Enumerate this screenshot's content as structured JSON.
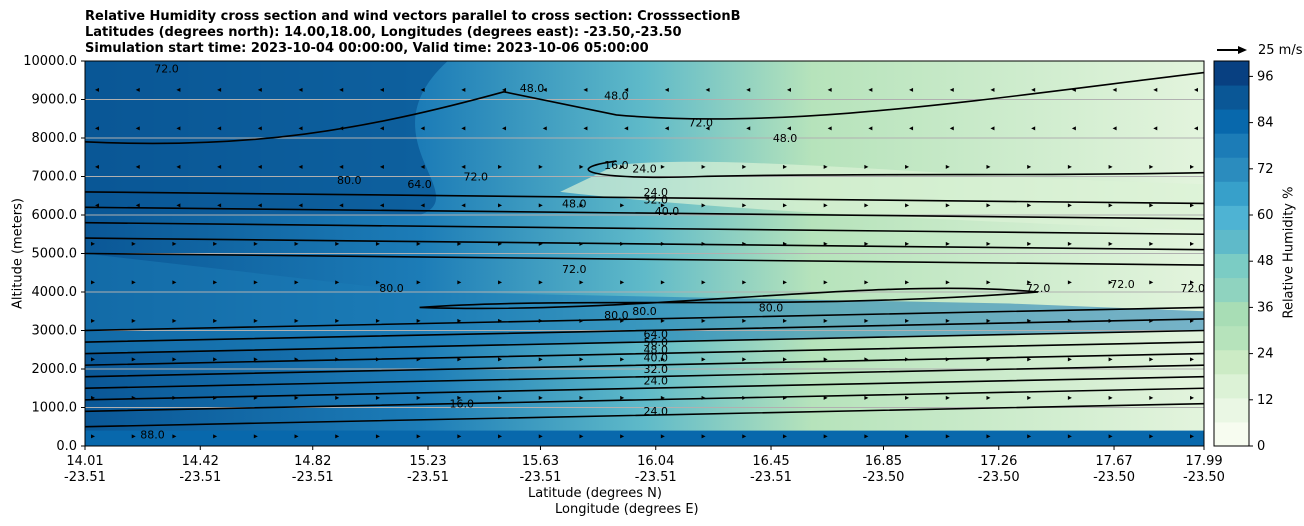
{
  "title_lines": [
    "Relative Humidity cross section and wind vectors parallel to cross section: CrosssectionB",
    "Latitudes (degrees north): 14.00,18.00, Longitudes (degrees east): -23.50,-23.50",
    "Simulation start time: 2023-10-04 00:00:00, Valid time: 2023-10-06 05:00:00"
  ],
  "chart_data": {
    "type": "heatmap",
    "title": "Relative Humidity cross section and wind vectors parallel to cross section: CrosssectionB",
    "xlabel": "Latitude (degrees N)",
    "xlabel2": "Longitude (degrees E)",
    "ylabel": "Altitude (meters)",
    "ylim": [
      0,
      10000
    ],
    "x_ticks": [
      {
        "lat": "14.01",
        "lon": "-23.51"
      },
      {
        "lat": "14.42",
        "lon": "-23.51"
      },
      {
        "lat": "14.82",
        "lon": "-23.51"
      },
      {
        "lat": "15.23",
        "lon": "-23.51"
      },
      {
        "lat": "15.63",
        "lon": "-23.51"
      },
      {
        "lat": "16.04",
        "lon": "-23.51"
      },
      {
        "lat": "16.45",
        "lon": "-23.51"
      },
      {
        "lat": "16.85",
        "lon": "-23.50"
      },
      {
        "lat": "17.26",
        "lon": "-23.50"
      },
      {
        "lat": "17.67",
        "lon": "-23.50"
      },
      {
        "lat": "17.99",
        "lon": "-23.50"
      }
    ],
    "y_ticks": [
      "0.0",
      "1000.0",
      "2000.0",
      "3000.0",
      "4000.0",
      "5000.0",
      "6000.0",
      "7000.0",
      "8000.0",
      "9000.0",
      "10000.0"
    ],
    "grid": "horizontal",
    "colorbar": {
      "label": "Relative Humidity %",
      "ticks": [
        "0",
        "12",
        "24",
        "36",
        "48",
        "60",
        "72",
        "84",
        "96"
      ],
      "range": [
        0,
        100
      ],
      "levels": 25,
      "colors": [
        "#f7fcf0",
        "#eaf7e4",
        "#dcf2d6",
        "#ccebc5",
        "#b6e3bb",
        "#a8ddb5",
        "#8fd3bf",
        "#7bccc4",
        "#5fbac9",
        "#4eb3d3",
        "#37a0ca",
        "#2b8cbe",
        "#1c7cb7",
        "#0868ac",
        "#0a5796",
        "#084081"
      ]
    },
    "wind_key": "25 m/s",
    "contour_labels": [
      {
        "text": "88.0",
        "x": 14.25,
        "y": 200
      },
      {
        "text": "80.0",
        "x": 14.95,
        "y": 6800
      },
      {
        "text": "80.0",
        "x": 15.1,
        "y": 4000
      },
      {
        "text": "72.0",
        "x": 14.3,
        "y": 9700
      },
      {
        "text": "72.0",
        "x": 15.4,
        "y": 6900
      },
      {
        "text": "64.0",
        "x": 15.2,
        "y": 6700
      },
      {
        "text": "48.0",
        "x": 15.6,
        "y": 9200
      },
      {
        "text": "48.0",
        "x": 15.75,
        "y": 6200
      },
      {
        "text": "48.0",
        "x": 15.9,
        "y": 9000
      },
      {
        "text": "24.0",
        "x": 16.0,
        "y": 7100
      },
      {
        "text": "16.0",
        "x": 15.9,
        "y": 7200
      },
      {
        "text": "24.0",
        "x": 16.04,
        "y": 6500
      },
      {
        "text": "32.0",
        "x": 16.04,
        "y": 6300
      },
      {
        "text": "40.0",
        "x": 16.08,
        "y": 6000
      },
      {
        "text": "72.0",
        "x": 15.75,
        "y": 4500
      },
      {
        "text": "80.0",
        "x": 16.0,
        "y": 3400
      },
      {
        "text": "80.0",
        "x": 15.9,
        "y": 3300
      },
      {
        "text": "64.0",
        "x": 16.04,
        "y": 2800
      },
      {
        "text": "56.0",
        "x": 16.04,
        "y": 2600
      },
      {
        "text": "48.0",
        "x": 16.04,
        "y": 2400
      },
      {
        "text": "40.0",
        "x": 16.04,
        "y": 2200
      },
      {
        "text": "32.0",
        "x": 16.04,
        "y": 1900
      },
      {
        "text": "24.0",
        "x": 16.04,
        "y": 1600
      },
      {
        "text": "24.0",
        "x": 16.04,
        "y": 800
      },
      {
        "text": "16.0",
        "x": 15.35,
        "y": 1000
      },
      {
        "text": "72.0",
        "x": 17.4,
        "y": 4000
      },
      {
        "text": "72.0",
        "x": 17.7,
        "y": 4100
      },
      {
        "text": "72.0",
        "x": 17.95,
        "y": 4000
      },
      {
        "text": "80.0",
        "x": 16.45,
        "y": 3500
      },
      {
        "text": "48.0",
        "x": 16.5,
        "y": 7900
      },
      {
        "text": "72.0",
        "x": 16.2,
        "y": 8300
      }
    ]
  }
}
